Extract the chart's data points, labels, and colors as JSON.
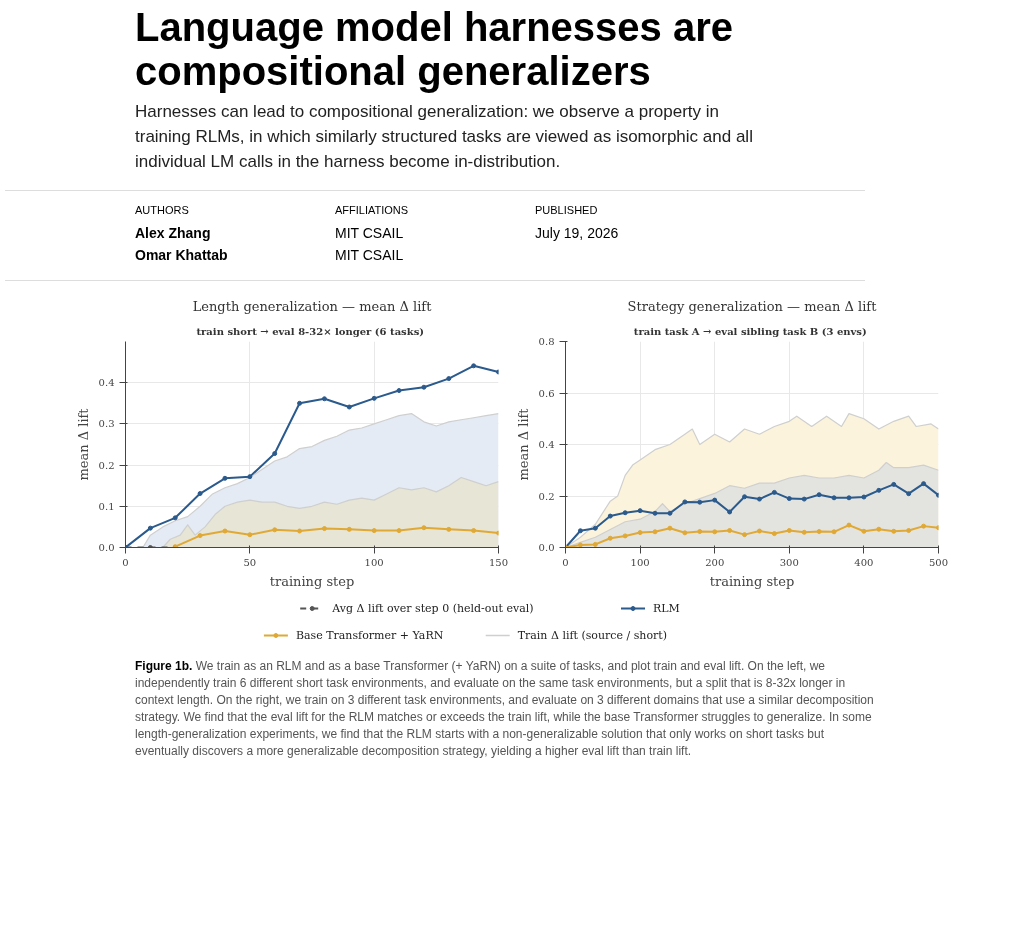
{
  "chart_data": [
    {
      "type": "other",
      "title": "Language model harnesses are compositional generalizers",
      "subtitle": "Harnesses can lead to compositional generalization: we observe a property in training RLMs, in which similarly structured tasks are viewed as isomorphic and all individual LM calls in the harness become in-distribution.",
      "annotations": [
        "AUTHORS",
        "Alex Zhang",
        "Omar Khattab",
        "AFFILIATIONS",
        "MIT CSAIL",
        "MIT CSAIL",
        "PUBLISHED",
        "July 19, 2026"
      ]
    },
    {
      "type": "line",
      "title": "Length generalization — mean Δ lift",
      "subtitle": "train short → eval 8-32× longer  (6 tasks)",
      "xlabel": "training step",
      "ylabel": "mean Δ lift",
      "xlim": [
        0,
        150
      ],
      "ylim": [
        0,
        0.5
      ],
      "xticks": [
        0,
        50,
        100,
        150
      ],
      "yticks": [
        {
          "value": 0,
          "label": "0.0"
        },
        0.1,
        0.2,
        0.3,
        0.4
      ],
      "grid": true,
      "legend": "bottom",
      "series": [
        {
          "type": "area",
          "name": "Train Δ lift (source / short)",
          "color": "#e4ebf4",
          "x": [
            7,
            10,
            15,
            20,
            25,
            30,
            35,
            40,
            45,
            50,
            55,
            60,
            65,
            70,
            75,
            80,
            85,
            90,
            95,
            100,
            105,
            110,
            115,
            120,
            125,
            130,
            135,
            140,
            145,
            150
          ],
          "values": [
            0,
            0.03,
            0.05,
            0.065,
            0.075,
            0.1,
            0.13,
            0.145,
            0.155,
            0.17,
            0.19,
            0.21,
            0.22,
            0.24,
            0.245,
            0.26,
            0.27,
            0.285,
            0.29,
            0.3,
            0.31,
            0.32,
            0.325,
            0.305,
            0.295,
            0.305,
            0.31,
            0.315,
            0.32,
            0.325
          ]
        },
        {
          "type": "area",
          "color": "#e6e5d6",
          "x": [
            15,
            18,
            22,
            25,
            28,
            32,
            36,
            40,
            45,
            50,
            55,
            60,
            65,
            70,
            75,
            80,
            85,
            90,
            95,
            100,
            105,
            110,
            115,
            120,
            125,
            130,
            135,
            140,
            145,
            150
          ],
          "values": [
            0,
            0.02,
            0.03,
            0.055,
            0.03,
            0.05,
            0.08,
            0.1,
            0.11,
            0.115,
            0.11,
            0.11,
            0.1,
            0.095,
            0.1,
            0.11,
            0.105,
            0.115,
            0.12,
            0.115,
            0.13,
            0.145,
            0.14,
            0.145,
            0.135,
            0.15,
            0.17,
            0.16,
            0.15,
            0.16
          ]
        },
        {
          "name": "Avg Δ lift over step 0 (held-out eval)",
          "color": "#555555",
          "line_style": "dashed",
          "marker": "circle",
          "x": [
            0,
            10,
            20
          ],
          "values": [
            0,
            0,
            0
          ]
        },
        {
          "name": "RLM",
          "color": "#2b5a8c",
          "marker": "circle",
          "x": [
            0,
            10,
            20,
            30,
            40,
            50,
            60,
            70,
            80,
            90,
            100,
            110,
            120,
            130,
            140,
            150
          ],
          "values": [
            0,
            0.047,
            0.072,
            0.131,
            0.168,
            0.172,
            0.228,
            0.35,
            0.361,
            0.341,
            0.362,
            0.381,
            0.389,
            0.41,
            0.441,
            0.426
          ]
        },
        {
          "name": "Base Transformer + YaRN",
          "color": "#e0a935",
          "marker": "circle",
          "x": [
            20,
            30,
            40,
            50,
            60,
            70,
            80,
            90,
            100,
            110,
            120,
            130,
            140,
            150
          ],
          "values": [
            0.002,
            0.029,
            0.04,
            0.031,
            0.043,
            0.04,
            0.046,
            0.044,
            0.041,
            0.041,
            0.048,
            0.044,
            0.041,
            0.035
          ]
        }
      ]
    },
    {
      "type": "line",
      "title": "Strategy generalization — mean Δ lift",
      "subtitle": "train task A → eval sibling task B  (3 envs)",
      "xlabel": "training step",
      "ylabel": "mean Δ lift",
      "xlim": [
        0,
        500
      ],
      "ylim": [
        0,
        0.8
      ],
      "xticks": [
        0,
        100,
        200,
        300,
        400,
        500
      ],
      "yticks": [
        {
          "value": 0,
          "label": "0.0"
        },
        0.2,
        0.4,
        0.6,
        0.8
      ],
      "grid": true,
      "legend": "bottom",
      "series": [
        {
          "type": "area",
          "color": "#fbf3dc",
          "x": [
            0,
            20,
            40,
            60,
            70,
            80,
            90,
            100,
            120,
            140,
            160,
            170,
            180,
            200,
            220,
            240,
            260,
            280,
            300,
            310,
            330,
            350,
            370,
            380,
            400,
            420,
            440,
            460,
            470,
            490,
            500
          ],
          "values": [
            0,
            0.04,
            0.09,
            0.18,
            0.2,
            0.28,
            0.32,
            0.34,
            0.38,
            0.4,
            0.44,
            0.46,
            0.4,
            0.44,
            0.41,
            0.46,
            0.44,
            0.47,
            0.49,
            0.51,
            0.47,
            0.51,
            0.47,
            0.52,
            0.5,
            0.46,
            0.49,
            0.51,
            0.47,
            0.48,
            0.46
          ]
        },
        {
          "type": "area",
          "color": "#e3e3df",
          "x": [
            0,
            20,
            40,
            60,
            80,
            100,
            120,
            130,
            140,
            160,
            180,
            200,
            220,
            240,
            260,
            280,
            300,
            320,
            340,
            360,
            380,
            400,
            420,
            430,
            440,
            460,
            480,
            500
          ],
          "values": [
            0,
            0.02,
            0.04,
            0.07,
            0.1,
            0.11,
            0.14,
            0.17,
            0.14,
            0.17,
            0.19,
            0.21,
            0.24,
            0.23,
            0.25,
            0.25,
            0.27,
            0.28,
            0.27,
            0.27,
            0.28,
            0.27,
            0.3,
            0.33,
            0.31,
            0.31,
            0.32,
            0.3
          ]
        },
        {
          "name": "RLM",
          "color": "#2b5a8c",
          "marker": "circle",
          "x": [
            0,
            20,
            40,
            60,
            80,
            100,
            120,
            140,
            160,
            180,
            200,
            220,
            240,
            260,
            280,
            300,
            320,
            340,
            360,
            380,
            400,
            420,
            440,
            460,
            480,
            500
          ],
          "values": [
            0,
            0.065,
            0.075,
            0.122,
            0.135,
            0.143,
            0.133,
            0.133,
            0.177,
            0.176,
            0.184,
            0.138,
            0.197,
            0.188,
            0.214,
            0.19,
            0.188,
            0.205,
            0.193,
            0.193,
            0.196,
            0.222,
            0.245,
            0.209,
            0.248,
            0.203
          ]
        },
        {
          "name": "Base Transformer + YaRN",
          "color": "#e0a935",
          "marker": "circle",
          "x": [
            0,
            20,
            40,
            60,
            80,
            100,
            120,
            140,
            160,
            180,
            200,
            220,
            240,
            260,
            280,
            300,
            320,
            340,
            360,
            380,
            400,
            420,
            440,
            460,
            480,
            500
          ],
          "values": [
            0,
            0.01,
            0.012,
            0.036,
            0.045,
            0.058,
            0.061,
            0.075,
            0.057,
            0.062,
            0.061,
            0.066,
            0.05,
            0.064,
            0.054,
            0.066,
            0.059,
            0.062,
            0.061,
            0.087,
            0.063,
            0.071,
            0.063,
            0.066,
            0.083,
            0.077
          ]
        }
      ]
    },
    {
      "type": "other",
      "annotations": [
        "Figure 1b.",
        "We train as an RLM and as a base Transformer (+ YaRN) on a suite of tasks, and plot train and eval lift. On the left, we independently train 6 different short task environments, and evaluate on the same task environments, but a split that is 8-32x longer in context length. On the right, we train on 3 different task environments, and evaluate on 3 different domains that use a similar decomposition strategy. We find that the eval lift for the RLM matches or exceeds the train lift, while the base Transformer struggles to generalize. In some length-generalization experiments, we find that the RLM starts with a non-generalizable solution that only works on short tasks but eventually discovers a more generalizable decomposition strategy, yielding a higher eval lift than train lift."
      ]
    }
  ]
}
